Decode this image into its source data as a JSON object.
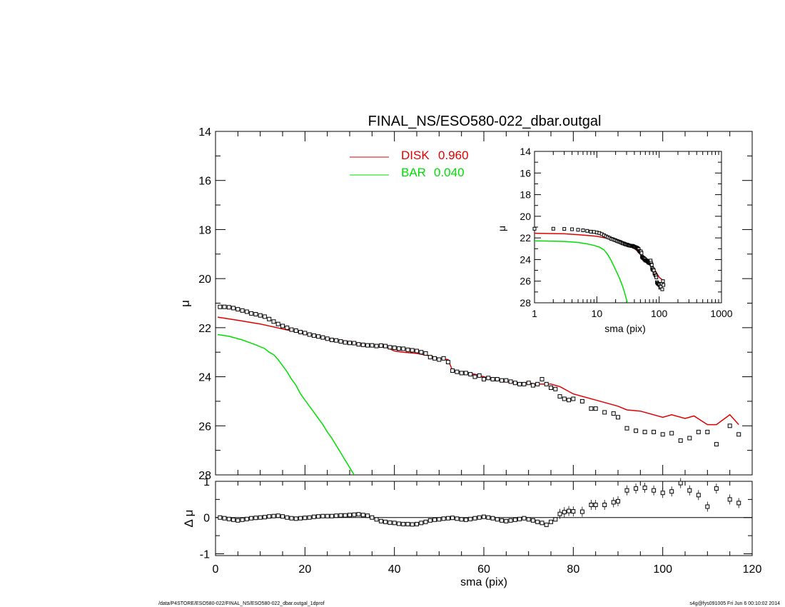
{
  "colors": {
    "disk": "#e00000",
    "bar": "#00e000",
    "data": "#000000",
    "frame": "#000000"
  },
  "footer": {
    "left": "/data/P4STORE/ESO580-022/FINAL_NS/ESO580-022_dbar.outgal_1dprof",
    "right": "s4g@fys091005  Fri Jun  6 00:10:02 2014"
  },
  "chart_data": [
    {
      "type": "line",
      "title": "FINAL_NS/ESO580-022_dbar.outgal",
      "xlabel": "",
      "ylabel": "μ",
      "xlim": [
        0,
        120
      ],
      "ylim": [
        28,
        14
      ],
      "y_inverted": true,
      "yticks": [
        "14",
        "16",
        "18",
        "20",
        "22",
        "24",
        "26",
        "28"
      ],
      "legend": {
        "placement": "top-center",
        "entries": [
          {
            "label": "DISK",
            "value": "0.960",
            "color": "#e00000"
          },
          {
            "label": "BAR",
            "value": "0.040",
            "color": "#00e000"
          }
        ]
      },
      "series": [
        {
          "marker": "square",
          "x": [
            1,
            2,
            3,
            4,
            5,
            6,
            7,
            8,
            9,
            10,
            11,
            12,
            13,
            14,
            15,
            16,
            17,
            18,
            19,
            20,
            21,
            22,
            23,
            24,
            25,
            26,
            27,
            28,
            29,
            30,
            31,
            32,
            33,
            34,
            35,
            36,
            37,
            38,
            39,
            40,
            41,
            42,
            43,
            44,
            45,
            46,
            47,
            48,
            49,
            50,
            51,
            52,
            53,
            54,
            55,
            56,
            57,
            58,
            59,
            60,
            61,
            62,
            63,
            64,
            65,
            66,
            67,
            68,
            69,
            70,
            71,
            72,
            73,
            74,
            75,
            76,
            77,
            78,
            79,
            80,
            82,
            84,
            85,
            87,
            89,
            90,
            92,
            94,
            96,
            98,
            100,
            102,
            104,
            106,
            108,
            110,
            112,
            115,
            117
          ],
          "values": [
            21.15,
            21.15,
            21.17,
            21.2,
            21.25,
            21.3,
            21.35,
            21.42,
            21.45,
            21.5,
            21.55,
            21.65,
            21.75,
            21.85,
            21.93,
            22.0,
            22.08,
            22.12,
            22.18,
            22.22,
            22.28,
            22.32,
            22.36,
            22.4,
            22.45,
            22.5,
            22.52,
            22.56,
            22.6,
            22.62,
            22.63,
            22.68,
            22.7,
            22.72,
            22.72,
            22.75,
            22.73,
            22.75,
            22.8,
            22.82,
            22.85,
            22.86,
            22.9,
            22.92,
            22.95,
            23.0,
            23.05,
            23.2,
            23.25,
            23.3,
            23.25,
            23.4,
            23.75,
            23.8,
            23.85,
            23.85,
            23.9,
            24.0,
            23.95,
            24.1,
            24.05,
            24.1,
            24.1,
            24.15,
            24.15,
            24.2,
            24.25,
            24.3,
            24.3,
            24.25,
            24.35,
            24.3,
            24.1,
            24.3,
            24.45,
            24.5,
            24.8,
            24.9,
            24.95,
            24.9,
            25.0,
            25.3,
            25.3,
            25.45,
            25.5,
            25.65,
            26.1,
            26.2,
            26.25,
            26.25,
            26.35,
            26.3,
            26.6,
            26.5,
            26.25,
            26.25,
            26.75,
            26.0,
            26.35
          ]
        },
        {
          "name": "DISK",
          "x": [
            0.5,
            5,
            10,
            15,
            20,
            25,
            30,
            33,
            36,
            38,
            40,
            42,
            45,
            48,
            50,
            52,
            53,
            55,
            58,
            60,
            62,
            65,
            68,
            70,
            72,
            75,
            77,
            80,
            85,
            90,
            92,
            95,
            100,
            102,
            105,
            107,
            110,
            112,
            115,
            117
          ],
          "values": [
            21.57,
            21.7,
            21.85,
            22.05,
            22.25,
            22.45,
            22.6,
            22.7,
            22.75,
            22.78,
            22.95,
            23.0,
            23.05,
            23.15,
            23.25,
            23.3,
            23.75,
            23.8,
            23.9,
            24.0,
            24.1,
            24.2,
            24.25,
            24.25,
            24.3,
            24.3,
            24.4,
            24.7,
            24.95,
            25.2,
            25.35,
            25.4,
            25.65,
            25.55,
            25.7,
            25.6,
            25.95,
            25.95,
            25.55,
            25.95
          ]
        },
        {
          "name": "BAR",
          "x": [
            0.5,
            3,
            6,
            9,
            11,
            12,
            13,
            14,
            15,
            16,
            17,
            18,
            19,
            20,
            21,
            22,
            23,
            24,
            25,
            26,
            27,
            28,
            29,
            30,
            31
          ],
          "values": [
            22.28,
            22.35,
            22.5,
            22.7,
            22.85,
            23.0,
            23.1,
            23.3,
            23.55,
            23.8,
            24.1,
            24.35,
            24.7,
            24.95,
            25.2,
            25.45,
            25.7,
            25.95,
            26.25,
            26.5,
            26.8,
            27.1,
            27.4,
            27.7,
            28.0
          ]
        }
      ]
    },
    {
      "type": "line",
      "title": "",
      "xlabel": "sma (pix)",
      "ylabel": "μ",
      "xscale": "log",
      "xlim": [
        1,
        1000
      ],
      "ylim": [
        28,
        14
      ],
      "y_inverted": true,
      "xticks": [
        "1",
        "10",
        "100",
        "1000"
      ],
      "yticks": [
        "14",
        "16",
        "18",
        "20",
        "22",
        "24",
        "26",
        "28"
      ],
      "series": [
        {
          "marker": "square",
          "x": [
            1,
            1.5,
            2,
            3,
            4,
            5,
            6,
            8,
            10,
            13,
            16,
            20,
            25,
            30,
            35,
            40,
            45,
            50,
            55,
            60,
            70,
            80,
            90,
            100,
            110,
            117
          ],
          "values": [
            21.15,
            21.15,
            21.17,
            21.2,
            21.25,
            21.3,
            21.35,
            21.45,
            21.55,
            21.8,
            22.0,
            22.22,
            22.45,
            22.62,
            22.72,
            22.8,
            22.92,
            23.25,
            23.8,
            24.1,
            24.3,
            24.9,
            25.5,
            26.3,
            26.6,
            26.35
          ]
        },
        {
          "name": "DISK",
          "x": [
            1,
            2,
            3,
            5,
            8,
            10,
            15,
            20,
            30,
            40,
            60,
            80,
            100,
            117
          ],
          "values": [
            21.57,
            21.6,
            21.62,
            21.7,
            21.8,
            21.85,
            22.05,
            22.25,
            22.6,
            22.95,
            24.0,
            24.7,
            25.65,
            25.95
          ]
        },
        {
          "name": "BAR",
          "x": [
            1,
            2,
            3,
            5,
            7,
            9,
            11,
            13,
            15,
            17,
            20,
            23,
            26,
            28,
            31
          ],
          "values": [
            22.28,
            22.3,
            22.33,
            22.42,
            22.55,
            22.7,
            22.85,
            23.1,
            23.55,
            24.1,
            24.95,
            25.7,
            26.5,
            27.1,
            28.0
          ]
        }
      ]
    },
    {
      "type": "scatter",
      "title": "",
      "xlabel": "sma (pix)",
      "ylabel": "Δ μ",
      "xlim": [
        0,
        120
      ],
      "ylim": [
        -1.05,
        1.0
      ],
      "xticks": [
        "0",
        "20",
        "40",
        "60",
        "80",
        "100",
        "120"
      ],
      "yticks": [
        "1",
        "0",
        "-1"
      ],
      "reference_line": 0,
      "series": [
        {
          "marker": "square",
          "x": [
            1,
            2,
            3,
            4,
            5,
            6,
            7,
            8,
            9,
            10,
            11,
            12,
            13,
            14,
            15,
            16,
            17,
            18,
            19,
            20,
            21,
            22,
            23,
            24,
            25,
            26,
            27,
            28,
            29,
            30,
            31,
            32,
            33,
            34,
            35,
            36,
            37,
            38,
            39,
            40,
            41,
            42,
            43,
            44,
            45,
            46,
            47,
            48,
            49,
            50,
            51,
            52,
            53,
            54,
            55,
            56,
            57,
            58,
            59,
            60,
            61,
            62,
            63,
            64,
            65,
            66,
            67,
            68,
            69,
            70,
            71,
            72,
            73,
            74,
            75,
            76,
            77,
            78,
            79,
            80,
            82,
            84,
            85,
            87,
            89,
            90,
            92,
            94,
            96,
            98,
            100,
            102,
            104,
            106,
            108,
            110,
            112,
            115,
            117
          ],
          "values": [
            0.0,
            -0.02,
            -0.04,
            -0.06,
            -0.08,
            -0.06,
            -0.04,
            -0.02,
            -0.01,
            0.0,
            0.01,
            0.03,
            0.04,
            0.05,
            0.03,
            0.0,
            -0.02,
            -0.03,
            -0.02,
            -0.01,
            0.0,
            0.02,
            0.03,
            0.04,
            0.04,
            0.04,
            0.05,
            0.06,
            0.06,
            0.07,
            0.08,
            0.09,
            0.07,
            0.05,
            0.0,
            -0.05,
            -0.1,
            -0.12,
            -0.14,
            -0.15,
            -0.17,
            -0.18,
            -0.18,
            -0.19,
            -0.18,
            -0.15,
            -0.12,
            -0.08,
            -0.06,
            -0.05,
            -0.03,
            -0.02,
            -0.01,
            -0.03,
            -0.05,
            -0.06,
            -0.04,
            -0.02,
            0.0,
            0.02,
            0.0,
            -0.02,
            -0.05,
            -0.08,
            -0.1,
            -0.08,
            -0.06,
            -0.04,
            -0.02,
            -0.05,
            -0.08,
            -0.12,
            -0.15,
            -0.2,
            -0.12,
            -0.05,
            0.1,
            0.15,
            0.18,
            0.17,
            0.16,
            0.35,
            0.35,
            0.35,
            0.42,
            0.45,
            0.75,
            0.8,
            0.82,
            0.75,
            0.68,
            0.72,
            0.95,
            0.75,
            0.62,
            0.3,
            0.8,
            0.5,
            0.4
          ]
        }
      ]
    }
  ]
}
